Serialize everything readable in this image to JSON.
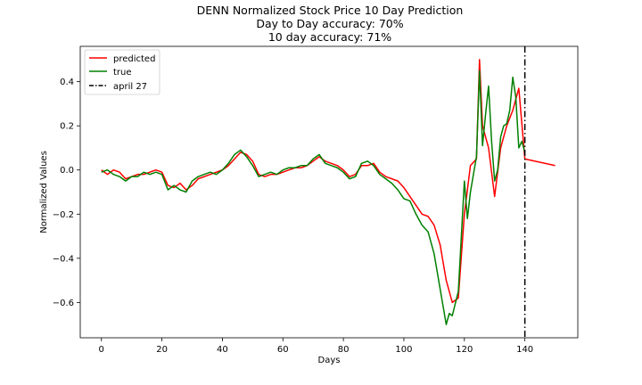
{
  "chart_data": {
    "type": "line",
    "title_lines": [
      "DENN Normalized Stock Price 10 Day Prediction",
      "Day to Day accuracy: 70%",
      "10 day accuracy: 71%"
    ],
    "xlabel": "Days",
    "ylabel": "Normalized Values",
    "xlim": [
      -7,
      157.5
    ],
    "ylim": [
      -0.76,
      0.56
    ],
    "xticks": [
      0,
      20,
      40,
      60,
      80,
      100,
      120,
      140
    ],
    "yticks": [
      -0.6,
      -0.4,
      -0.2,
      0.0,
      0.2,
      0.4
    ],
    "ytick_labels": [
      "−0.6",
      "−0.4",
      "−0.2",
      "0.0",
      "0.2",
      "0.4"
    ],
    "legend_position": "upper left",
    "colors": {
      "predicted": "#ff0000",
      "true": "#008000",
      "vline": "#000000"
    },
    "series": [
      {
        "name": "predicted",
        "color": "#ff0000",
        "x": [
          0,
          2,
          4,
          6,
          8,
          10,
          12,
          14,
          16,
          18,
          20,
          22,
          24,
          26,
          28,
          30,
          32,
          34,
          36,
          38,
          40,
          42,
          44,
          46,
          48,
          50,
          52,
          54,
          56,
          58,
          60,
          62,
          64,
          66,
          68,
          70,
          72,
          74,
          76,
          78,
          80,
          82,
          84,
          86,
          88,
          90,
          92,
          94,
          96,
          98,
          100,
          102,
          104,
          106,
          108,
          110,
          112,
          114,
          116,
          118,
          120,
          122,
          124,
          125,
          126,
          128,
          130,
          132,
          134,
          136,
          138,
          140,
          150
        ],
        "y": [
          0.0,
          -0.02,
          0.0,
          -0.01,
          -0.04,
          -0.03,
          -0.02,
          -0.02,
          -0.01,
          0.0,
          -0.01,
          -0.07,
          -0.08,
          -0.06,
          -0.09,
          -0.07,
          -0.04,
          -0.03,
          -0.02,
          -0.01,
          0.0,
          0.02,
          0.05,
          0.08,
          0.07,
          0.04,
          -0.02,
          -0.03,
          -0.02,
          -0.02,
          -0.01,
          0.0,
          0.01,
          0.01,
          0.02,
          0.04,
          0.06,
          0.04,
          0.03,
          0.02,
          0.0,
          -0.03,
          -0.02,
          0.02,
          0.02,
          0.03,
          -0.01,
          -0.03,
          -0.04,
          -0.05,
          -0.08,
          -0.12,
          -0.16,
          -0.2,
          -0.21,
          -0.25,
          -0.34,
          -0.5,
          -0.6,
          -0.58,
          -0.2,
          0.02,
          0.05,
          0.5,
          0.2,
          0.1,
          -0.12,
          0.1,
          0.2,
          0.27,
          0.37,
          0.05,
          0.02
        ]
      },
      {
        "name": "true",
        "color": "#008000",
        "x": [
          0,
          2,
          4,
          6,
          8,
          10,
          12,
          14,
          16,
          18,
          20,
          22,
          24,
          26,
          28,
          30,
          32,
          34,
          36,
          38,
          40,
          42,
          44,
          46,
          48,
          50,
          52,
          54,
          56,
          58,
          60,
          62,
          64,
          66,
          68,
          70,
          72,
          74,
          76,
          78,
          80,
          82,
          84,
          86,
          88,
          90,
          92,
          94,
          96,
          98,
          100,
          102,
          104,
          106,
          108,
          110,
          112,
          114,
          115,
          116,
          118,
          120,
          121,
          122,
          123,
          124,
          125,
          126,
          127,
          128,
          129,
          130,
          131,
          132,
          133,
          134,
          135,
          136,
          137,
          138,
          139,
          140
        ],
        "y": [
          -0.01,
          0.0,
          -0.02,
          -0.03,
          -0.05,
          -0.03,
          -0.03,
          -0.01,
          -0.02,
          -0.01,
          -0.02,
          -0.09,
          -0.07,
          -0.09,
          -0.1,
          -0.05,
          -0.03,
          -0.02,
          -0.01,
          -0.02,
          0.0,
          0.03,
          0.07,
          0.09,
          0.06,
          0.02,
          -0.03,
          -0.02,
          -0.01,
          -0.02,
          0.0,
          0.01,
          0.01,
          0.02,
          0.02,
          0.05,
          0.07,
          0.03,
          0.02,
          0.01,
          -0.01,
          -0.04,
          -0.03,
          0.03,
          0.04,
          0.02,
          -0.02,
          -0.04,
          -0.06,
          -0.09,
          -0.13,
          -0.14,
          -0.2,
          -0.25,
          -0.28,
          -0.38,
          -0.54,
          -0.7,
          -0.65,
          -0.66,
          -0.55,
          -0.05,
          -0.22,
          -0.1,
          -0.02,
          0.06,
          0.45,
          0.11,
          0.25,
          0.38,
          0.13,
          -0.05,
          0.0,
          0.15,
          0.2,
          0.21,
          0.27,
          0.42,
          0.33,
          0.1,
          0.13,
          0.08
        ]
      }
    ],
    "vline": {
      "label": "april 27",
      "x": 140,
      "style": "dash-dot"
    }
  }
}
